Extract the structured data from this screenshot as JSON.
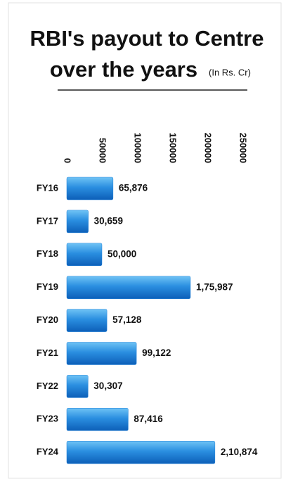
{
  "chart_data": {
    "type": "bar",
    "orientation": "horizontal",
    "title": [
      "RBI's payout to Centre",
      "over the years"
    ],
    "unit": "(In Rs. Cr)",
    "categories": [
      "FY16",
      "FY17",
      "FY18",
      "FY19",
      "FY20",
      "FY21",
      "FY22",
      "FY23",
      "FY24"
    ],
    "values": [
      65876,
      30659,
      50000,
      175987,
      57128,
      99122,
      30307,
      87416,
      210874
    ],
    "value_labels": [
      "65,876",
      "30,659",
      "50,000",
      "1,75,987",
      "57,128",
      "99,122",
      "30,307",
      "87,416",
      "2,10,874"
    ],
    "value_label_colors": [
      "#111111",
      "#111111",
      "#111111",
      "#111111",
      "#111111",
      "#111111",
      "#111111",
      "#111111",
      "#d2381c"
    ],
    "color": "#1d7fd8",
    "xlim": [
      0,
      250000
    ],
    "xticks": [
      0,
      50000,
      100000,
      150000,
      200000,
      250000
    ]
  }
}
